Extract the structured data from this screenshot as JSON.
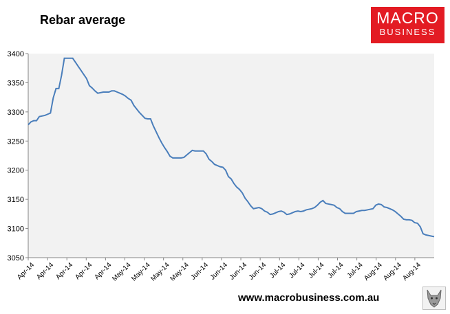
{
  "header": {
    "title": "Rebar average"
  },
  "brand": {
    "logo_line1": "MACRO",
    "logo_line2": "BUSINESS",
    "logo_color": "#e31b23"
  },
  "footer": {
    "url": "www.macrobusiness.com.au"
  },
  "chart_data": {
    "type": "line",
    "title": "Rebar average",
    "xlabel": "",
    "ylabel": "",
    "ylim": [
      3050,
      3400
    ],
    "y_ticks": [
      3050,
      3100,
      3150,
      3200,
      3250,
      3300,
      3350,
      3400
    ],
    "x_tick_labels": [
      "Apr-14",
      "Apr-14",
      "Apr-14",
      "Apr-14",
      "Apr-14",
      "May-14",
      "May-14",
      "May-14",
      "May-14",
      "Jun-14",
      "Jun-14",
      "Jun-14",
      "Jun-14",
      "Jul-14",
      "Jul-14",
      "Jul-14",
      "Jul-14",
      "Jul-14",
      "Aug-14",
      "Aug-14",
      "Aug-14"
    ],
    "grid": false,
    "line_color": "#4a7ebb",
    "plot_background": "#f2f2f2",
    "series": [
      {
        "values": [
          3278,
          3283,
          3285,
          3285,
          3292,
          3293,
          3294,
          3296,
          3298,
          3324,
          3340,
          3340,
          3363,
          3392,
          3392,
          3392,
          3392,
          3385,
          3378,
          3371,
          3364,
          3357,
          3345,
          3341,
          3336,
          3332,
          3333,
          3334,
          3334,
          3334,
          3336,
          3336,
          3334,
          3332,
          3330,
          3327,
          3323,
          3320,
          3311,
          3305,
          3299,
          3294,
          3289,
          3288,
          3288,
          3276,
          3266,
          3256,
          3247,
          3239,
          3232,
          3224,
          3221,
          3221,
          3221,
          3221,
          3222,
          3226,
          3230,
          3234,
          3233,
          3233,
          3233,
          3233,
          3228,
          3219,
          3215,
          3210,
          3208,
          3206,
          3205,
          3200,
          3189,
          3185,
          3177,
          3171,
          3167,
          3161,
          3152,
          3146,
          3139,
          3134,
          3135,
          3136,
          3134,
          3130,
          3128,
          3124,
          3125,
          3127,
          3129,
          3130,
          3128,
          3124,
          3125,
          3127,
          3129,
          3130,
          3129,
          3130,
          3132,
          3133,
          3134,
          3136,
          3140,
          3145,
          3148,
          3143,
          3142,
          3141,
          3140,
          3136,
          3134,
          3129,
          3126,
          3126,
          3126,
          3126,
          3129,
          3130,
          3131,
          3131,
          3132,
          3133,
          3134,
          3140,
          3142,
          3141,
          3137,
          3136,
          3134,
          3132,
          3129,
          3125,
          3121,
          3116,
          3115,
          3115,
          3114,
          3110,
          3109,
          3103,
          3091,
          3089,
          3088,
          3087,
          3086
        ]
      }
    ]
  }
}
